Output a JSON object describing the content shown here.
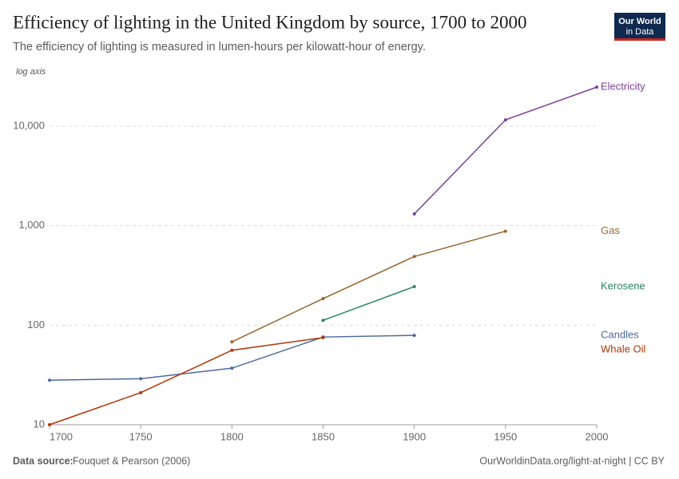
{
  "header": {
    "title": "Efficiency of lighting in the United Kingdom by source, 1700 to 2000",
    "subtitle": "The efficiency of lighting is measured in lumen-hours per kilowatt-hour of energy.",
    "logo": [
      "Our World",
      "in Data"
    ]
  },
  "chart_data": {
    "type": "line",
    "log": true,
    "grid": true,
    "y_axis_note": "log axis",
    "x": [
      1700,
      1750,
      1800,
      1850,
      1900,
      1950,
      2000
    ],
    "xlim": [
      1700,
      2000
    ],
    "xticks": [
      1700,
      1750,
      1800,
      1850,
      1900,
      1950,
      2000
    ],
    "ylim": [
      10,
      32000
    ],
    "yticks": [
      10,
      100,
      {
        "value": 1000,
        "label": "1,000"
      },
      {
        "value": 10000,
        "label": "10,000"
      }
    ],
    "series": [
      {
        "name": "Electricity",
        "color": "#7d3f98",
        "values": [
          null,
          null,
          null,
          null,
          1310,
          11560,
          24660
        ]
      },
      {
        "name": "Gas",
        "color": "#9a652e",
        "values": [
          null,
          null,
          68,
          185,
          490,
          880,
          null
        ]
      },
      {
        "name": "Kerosene",
        "color": "#2c8465",
        "values": [
          null,
          null,
          null,
          112,
          244,
          null,
          null
        ]
      },
      {
        "name": "Candles",
        "color": "#4c6a9c",
        "values": [
          28,
          29,
          37,
          76,
          79,
          null,
          null
        ]
      },
      {
        "name": "Whale Oil",
        "color": "#b13507",
        "values": [
          10,
          21,
          56,
          75,
          null,
          null,
          null
        ]
      }
    ]
  },
  "footer": {
    "source_label": "Data source:",
    "source": "Fouquet & Pearson (2006)",
    "url": "OurWorldinData.org/light-at-night | CC BY"
  }
}
